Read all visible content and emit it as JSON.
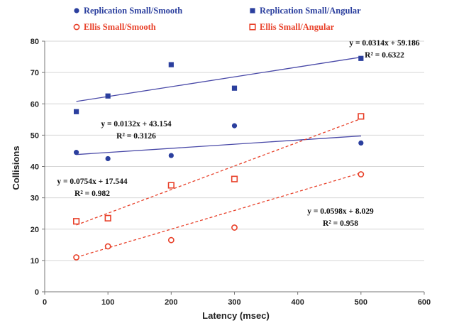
{
  "chart_data": {
    "type": "scatter",
    "xlabel": "Latency (msec)",
    "ylabel": "Collisions",
    "xlim": [
      0,
      600
    ],
    "ylim": [
      0,
      80
    ],
    "x_ticks": [
      0,
      100,
      200,
      300,
      400,
      500,
      600
    ],
    "y_ticks": [
      0,
      10,
      20,
      30,
      40,
      50,
      60,
      70,
      80
    ],
    "grid": "horizontal",
    "legend_position": "top",
    "series": [
      {
        "name": "Replication Small/Smooth",
        "marker": "filled-circle",
        "color": "#2b3f9e",
        "points": [
          [
            50,
            44.5
          ],
          [
            100,
            42.5
          ],
          [
            200,
            43.5
          ],
          [
            300,
            53
          ],
          [
            500,
            47.5
          ]
        ],
        "trendline": {
          "slope": 0.0132,
          "intercept": 43.154,
          "color": "#4a4aa8",
          "dashed": false
        }
      },
      {
        "name": "Replication Small/Angular",
        "marker": "filled-square",
        "color": "#2b3f9e",
        "points": [
          [
            50,
            57.5
          ],
          [
            100,
            62.5
          ],
          [
            200,
            72.5
          ],
          [
            300,
            65
          ],
          [
            500,
            74.5
          ]
        ],
        "trendline": {
          "slope": 0.0314,
          "intercept": 59.186,
          "color": "#4a4aa8",
          "dashed": false
        }
      },
      {
        "name": "Ellis Small/Smooth",
        "marker": "open-circle",
        "color": "#e8412a",
        "points": [
          [
            50,
            11
          ],
          [
            100,
            14.5
          ],
          [
            200,
            16.5
          ],
          [
            300,
            20.5
          ],
          [
            500,
            37.5
          ]
        ],
        "trendline": {
          "slope": 0.0598,
          "intercept": 8.029,
          "color": "#e8412a",
          "dashed": true
        }
      },
      {
        "name": "Ellis Small/Angular",
        "marker": "open-square",
        "color": "#e8412a",
        "points": [
          [
            50,
            22.5
          ],
          [
            100,
            23.5
          ],
          [
            200,
            34
          ],
          [
            300,
            36
          ],
          [
            500,
            56
          ]
        ],
        "trendline": {
          "slope": 0.0754,
          "intercept": 17.544,
          "color": "#e8412a",
          "dashed": true
        }
      }
    ],
    "annotations": [
      {
        "id": "eq-angular-rep",
        "line1": "y = 0.0314x + 59.186",
        "line2": "R² = 0.6322"
      },
      {
        "id": "eq-smooth-rep",
        "line1": "y = 0.0132x + 43.154",
        "line2": "R² = 0.3126"
      },
      {
        "id": "eq-angular-ellis",
        "line1": "y = 0.0754x + 17.544",
        "line2": "R² = 0.982"
      },
      {
        "id": "eq-smooth-ellis",
        "line1": "y = 0.0598x + 8.029",
        "line2": "R² = 0.958"
      }
    ]
  }
}
